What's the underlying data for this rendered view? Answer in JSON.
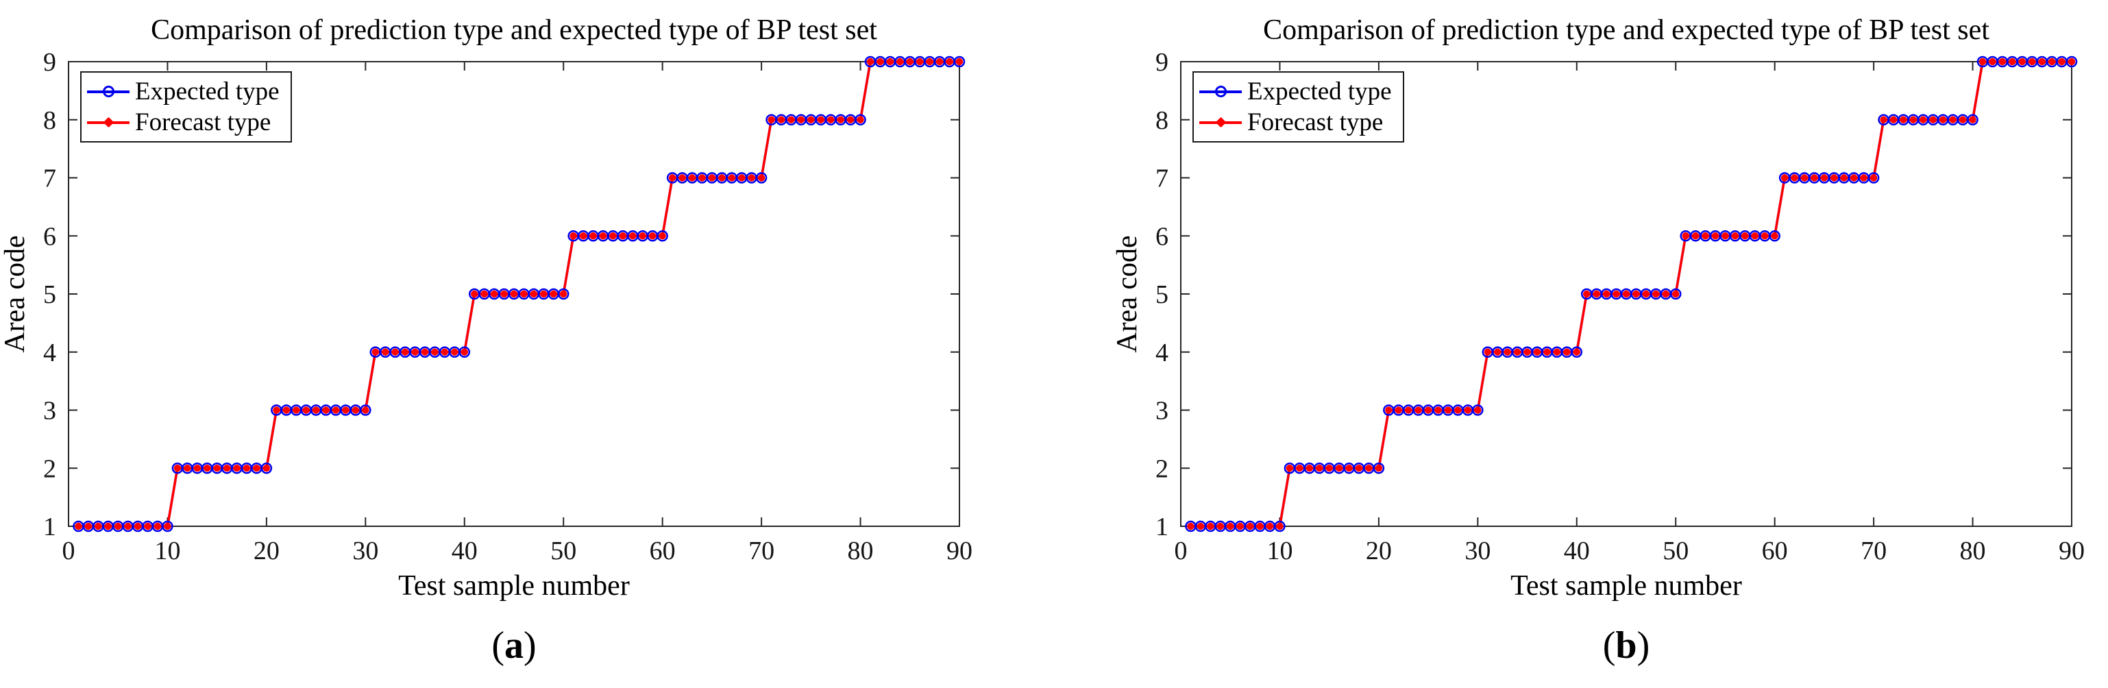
{
  "figure": {
    "panels": [
      {
        "caption_open": "(",
        "caption_letter": "a",
        "caption_close": ")"
      },
      {
        "caption_open": "(",
        "caption_letter": "b",
        "caption_close": ")"
      }
    ]
  },
  "chart_data": [
    {
      "type": "line",
      "title": "Comparison of prediction type and expected type of BP test set",
      "xlabel": "Test sample number",
      "ylabel": "Area code",
      "xlim": [
        0,
        90
      ],
      "ylim": [
        1,
        9
      ],
      "xticks": [
        0,
        10,
        20,
        30,
        40,
        50,
        60,
        70,
        80,
        90
      ],
      "yticks": [
        1,
        2,
        3,
        4,
        5,
        6,
        7,
        8,
        9
      ],
      "grid": false,
      "box": true,
      "legend_position": "top-left",
      "axis_color": "#262626",
      "x": [
        1,
        2,
        3,
        4,
        5,
        6,
        7,
        8,
        9,
        10,
        11,
        12,
        13,
        14,
        15,
        16,
        17,
        18,
        19,
        20,
        21,
        22,
        23,
        24,
        25,
        26,
        27,
        28,
        29,
        30,
        31,
        32,
        33,
        34,
        35,
        36,
        37,
        38,
        39,
        40,
        41,
        42,
        43,
        44,
        45,
        46,
        47,
        48,
        49,
        50,
        51,
        52,
        53,
        54,
        55,
        56,
        57,
        58,
        59,
        60,
        61,
        62,
        63,
        64,
        65,
        66,
        67,
        68,
        69,
        70,
        71,
        72,
        73,
        74,
        75,
        76,
        77,
        78,
        79,
        80,
        81,
        82,
        83,
        84,
        85,
        86,
        87,
        88,
        89,
        90
      ],
      "series": [
        {
          "name": "Expected type",
          "color": "#0000EE",
          "marker": "o",
          "values": [
            1,
            1,
            1,
            1,
            1,
            1,
            1,
            1,
            1,
            1,
            2,
            2,
            2,
            2,
            2,
            2,
            2,
            2,
            2,
            2,
            3,
            3,
            3,
            3,
            3,
            3,
            3,
            3,
            3,
            3,
            4,
            4,
            4,
            4,
            4,
            4,
            4,
            4,
            4,
            4,
            5,
            5,
            5,
            5,
            5,
            5,
            5,
            5,
            5,
            5,
            6,
            6,
            6,
            6,
            6,
            6,
            6,
            6,
            6,
            6,
            7,
            7,
            7,
            7,
            7,
            7,
            7,
            7,
            7,
            7,
            8,
            8,
            8,
            8,
            8,
            8,
            8,
            8,
            8,
            8,
            9,
            9,
            9,
            9,
            9,
            9,
            9,
            9,
            9,
            9
          ]
        },
        {
          "name": "Forecast type",
          "color": "#FF0000",
          "marker": "*",
          "values": [
            1,
            1,
            1,
            1,
            1,
            1,
            1,
            1,
            1,
            1,
            2,
            2,
            2,
            2,
            2,
            2,
            2,
            2,
            2,
            2,
            3,
            3,
            3,
            3,
            3,
            3,
            3,
            3,
            3,
            3,
            4,
            4,
            4,
            4,
            4,
            4,
            4,
            4,
            4,
            4,
            5,
            5,
            5,
            5,
            5,
            5,
            5,
            5,
            5,
            5,
            6,
            6,
            6,
            6,
            6,
            6,
            6,
            6,
            6,
            6,
            7,
            7,
            7,
            7,
            7,
            7,
            7,
            7,
            7,
            7,
            8,
            8,
            8,
            8,
            8,
            8,
            8,
            8,
            8,
            8,
            9,
            9,
            9,
            9,
            9,
            9,
            9,
            9,
            9,
            9
          ]
        }
      ]
    },
    {
      "type": "line",
      "title": "Comparison of prediction type and expected type of BP test set",
      "xlabel": "Test sample number",
      "ylabel": "Area code",
      "xlim": [
        0,
        90
      ],
      "ylim": [
        1,
        9
      ],
      "xticks": [
        0,
        10,
        20,
        30,
        40,
        50,
        60,
        70,
        80,
        90
      ],
      "yticks": [
        1,
        2,
        3,
        4,
        5,
        6,
        7,
        8,
        9
      ],
      "grid": false,
      "box": true,
      "legend_position": "top-left",
      "axis_color": "#262626",
      "x": [
        1,
        2,
        3,
        4,
        5,
        6,
        7,
        8,
        9,
        10,
        11,
        12,
        13,
        14,
        15,
        16,
        17,
        18,
        19,
        20,
        21,
        22,
        23,
        24,
        25,
        26,
        27,
        28,
        29,
        30,
        31,
        32,
        33,
        34,
        35,
        36,
        37,
        38,
        39,
        40,
        41,
        42,
        43,
        44,
        45,
        46,
        47,
        48,
        49,
        50,
        51,
        52,
        53,
        54,
        55,
        56,
        57,
        58,
        59,
        60,
        61,
        62,
        63,
        64,
        65,
        66,
        67,
        68,
        69,
        70,
        71,
        72,
        73,
        74,
        75,
        76,
        77,
        78,
        79,
        80,
        81,
        82,
        83,
        84,
        85,
        86,
        87,
        88,
        89,
        90
      ],
      "series": [
        {
          "name": "Expected type",
          "color": "#0000EE",
          "marker": "o",
          "values": [
            1,
            1,
            1,
            1,
            1,
            1,
            1,
            1,
            1,
            1,
            2,
            2,
            2,
            2,
            2,
            2,
            2,
            2,
            2,
            2,
            3,
            3,
            3,
            3,
            3,
            3,
            3,
            3,
            3,
            3,
            4,
            4,
            4,
            4,
            4,
            4,
            4,
            4,
            4,
            4,
            5,
            5,
            5,
            5,
            5,
            5,
            5,
            5,
            5,
            5,
            6,
            6,
            6,
            6,
            6,
            6,
            6,
            6,
            6,
            6,
            7,
            7,
            7,
            7,
            7,
            7,
            7,
            7,
            7,
            7,
            8,
            8,
            8,
            8,
            8,
            8,
            8,
            8,
            8,
            8,
            9,
            9,
            9,
            9,
            9,
            9,
            9,
            9,
            9,
            9
          ]
        },
        {
          "name": "Forecast type",
          "color": "#FF0000",
          "marker": "*",
          "values": [
            1,
            1,
            1,
            1,
            1,
            1,
            1,
            1,
            1,
            1,
            2,
            2,
            2,
            2,
            2,
            2,
            2,
            2,
            2,
            2,
            3,
            3,
            3,
            3,
            3,
            3,
            3,
            3,
            3,
            3,
            4,
            4,
            4,
            4,
            4,
            4,
            4,
            4,
            4,
            4,
            5,
            5,
            5,
            5,
            5,
            5,
            5,
            5,
            5,
            5,
            6,
            6,
            6,
            6,
            6,
            6,
            6,
            6,
            6,
            6,
            7,
            7,
            7,
            7,
            7,
            7,
            7,
            7,
            7,
            7,
            8,
            8,
            8,
            8,
            8,
            8,
            8,
            8,
            8,
            8,
            9,
            9,
            9,
            9,
            9,
            9,
            9,
            9,
            9,
            9
          ]
        }
      ]
    }
  ]
}
